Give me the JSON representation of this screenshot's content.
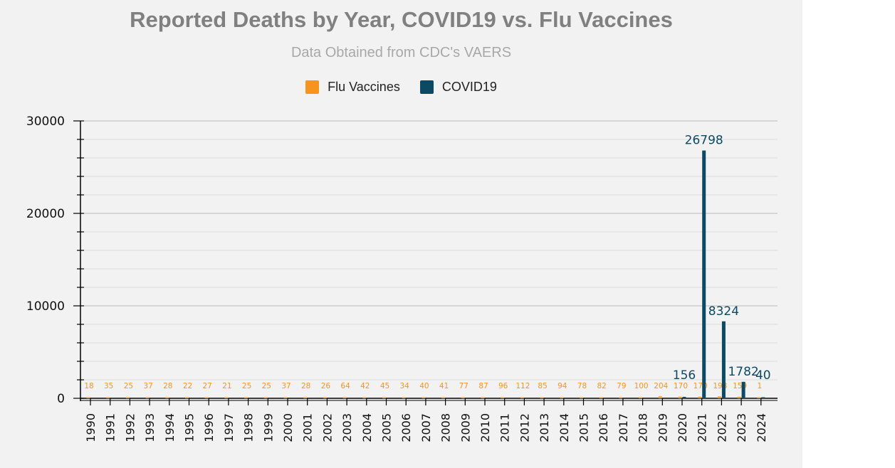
{
  "chart_data": {
    "type": "bar",
    "title": "Reported Deaths by Year, COVID19 vs. Flu Vaccines",
    "subtitle": "Data Obtained from CDC's VAERS",
    "xlabel": "",
    "ylabel": "",
    "ylim": [
      0,
      30000
    ],
    "yticks": [
      0,
      10000,
      20000,
      30000
    ],
    "legend_position": "top-center",
    "categories": [
      "1990",
      "1991",
      "1992",
      "1993",
      "1994",
      "1995",
      "1996",
      "1997",
      "1998",
      "1999",
      "2000",
      "2001",
      "2002",
      "2003",
      "2004",
      "2005",
      "2006",
      "2007",
      "2008",
      "2009",
      "2010",
      "2011",
      "2012",
      "2013",
      "2014",
      "2015",
      "2016",
      "2017",
      "2018",
      "2019",
      "2020",
      "2021",
      "2022",
      "2023",
      "2024"
    ],
    "series": [
      {
        "name": "Flu Vaccines",
        "color": "#f7941d",
        "values": [
          18,
          35,
          25,
          37,
          28,
          22,
          27,
          21,
          25,
          25,
          37,
          28,
          26,
          64,
          42,
          45,
          34,
          40,
          41,
          77,
          87,
          96,
          112,
          85,
          94,
          78,
          82,
          79,
          100,
          204,
          170,
          170,
          198,
          159,
          1
        ]
      },
      {
        "name": "COVID19",
        "color": "#0c4a63",
        "values": [
          null,
          null,
          null,
          null,
          null,
          null,
          null,
          null,
          null,
          null,
          null,
          null,
          null,
          null,
          null,
          null,
          null,
          null,
          null,
          null,
          null,
          null,
          null,
          null,
          null,
          null,
          null,
          null,
          null,
          null,
          156,
          26798,
          8324,
          1782,
          40
        ]
      }
    ]
  }
}
